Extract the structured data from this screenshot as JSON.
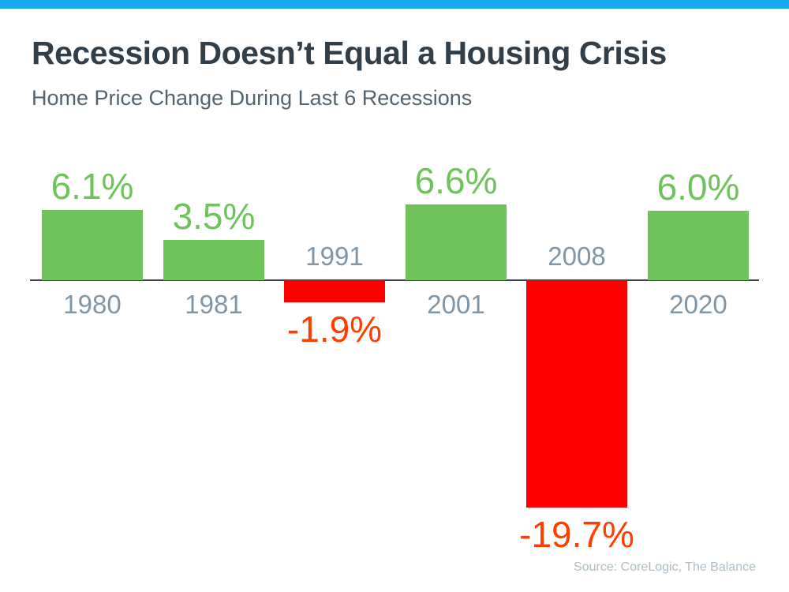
{
  "page": {
    "title": "Recession Doesn’t Equal a Housing Crisis",
    "subtitle": "Home Price Change During Last 6 Recessions",
    "source": "Source: CoreLogic, The Balance"
  },
  "colors": {
    "top_bar": "#16ABEC",
    "title": "#323E48",
    "subtitle": "#53646E",
    "axis_line": "#3C4249",
    "positive_bar": "#70C25B",
    "negative_bar": "#FF0000",
    "positive_label": "#70C25B",
    "negative_label": "#FF3D00",
    "year_label": "#8095A5",
    "source": "#ADBDC6"
  },
  "chart_data": {
    "type": "bar",
    "title": "Recession Doesn’t Equal a Housing Crisis",
    "subtitle": "Home Price Change During Last 6 Recessions",
    "categories": [
      "1980",
      "1981",
      "1991",
      "2001",
      "2008",
      "2020"
    ],
    "values": [
      6.1,
      3.5,
      -1.9,
      6.6,
      -19.7,
      6.0
    ],
    "labels": [
      "6.1%",
      "3.5%",
      "-1.9%",
      "6.6%",
      "-19.7%",
      "6.0%"
    ],
    "unit": "%",
    "xlabel": "",
    "ylabel": "",
    "ylim": [
      -22,
      8
    ],
    "grid": false,
    "legend_position": "none",
    "positive_color": "#70C25B",
    "negative_color": "#FF0000",
    "source": "Source: CoreLogic, The Balance"
  }
}
